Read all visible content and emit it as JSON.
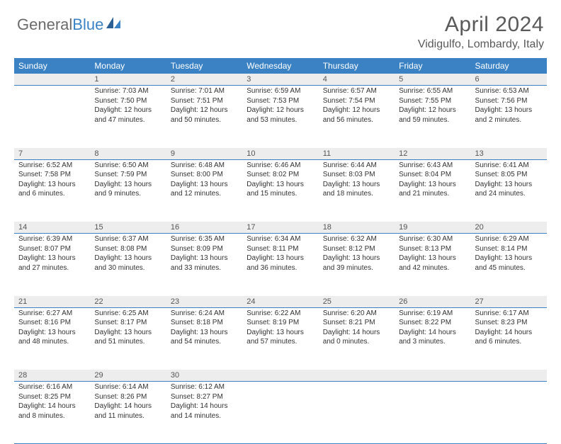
{
  "colors": {
    "header_bg": "#3b82c4",
    "header_text": "#ffffff",
    "daynum_bg": "#ededed",
    "row_border": "#3b82c4",
    "body_text": "#333333",
    "title_text": "#5a5a5a",
    "logo_gray": "#6b6b6b",
    "logo_blue": "#3b82c4",
    "background": "#ffffff"
  },
  "typography": {
    "font_family": "Arial, Helvetica, sans-serif",
    "month_title_size": 30,
    "location_size": 16,
    "weekday_size": 12,
    "daynum_size": 11,
    "body_size": 10
  },
  "logo": {
    "word1": "General",
    "word2": "Blue"
  },
  "title": "April 2024",
  "location": "Vidigulfo, Lombardy, Italy",
  "weekdays": [
    "Sunday",
    "Monday",
    "Tuesday",
    "Wednesday",
    "Thursday",
    "Friday",
    "Saturday"
  ],
  "layout": {
    "columns": 7,
    "rows": 5,
    "first_weekday_index": 1
  },
  "rows": [
    [
      null,
      {
        "n": "1",
        "sr": "Sunrise: 7:03 AM",
        "ss": "Sunset: 7:50 PM",
        "dl": "Daylight: 12 hours and 47 minutes."
      },
      {
        "n": "2",
        "sr": "Sunrise: 7:01 AM",
        "ss": "Sunset: 7:51 PM",
        "dl": "Daylight: 12 hours and 50 minutes."
      },
      {
        "n": "3",
        "sr": "Sunrise: 6:59 AM",
        "ss": "Sunset: 7:53 PM",
        "dl": "Daylight: 12 hours and 53 minutes."
      },
      {
        "n": "4",
        "sr": "Sunrise: 6:57 AM",
        "ss": "Sunset: 7:54 PM",
        "dl": "Daylight: 12 hours and 56 minutes."
      },
      {
        "n": "5",
        "sr": "Sunrise: 6:55 AM",
        "ss": "Sunset: 7:55 PM",
        "dl": "Daylight: 12 hours and 59 minutes."
      },
      {
        "n": "6",
        "sr": "Sunrise: 6:53 AM",
        "ss": "Sunset: 7:56 PM",
        "dl": "Daylight: 13 hours and 2 minutes."
      }
    ],
    [
      {
        "n": "7",
        "sr": "Sunrise: 6:52 AM",
        "ss": "Sunset: 7:58 PM",
        "dl": "Daylight: 13 hours and 6 minutes."
      },
      {
        "n": "8",
        "sr": "Sunrise: 6:50 AM",
        "ss": "Sunset: 7:59 PM",
        "dl": "Daylight: 13 hours and 9 minutes."
      },
      {
        "n": "9",
        "sr": "Sunrise: 6:48 AM",
        "ss": "Sunset: 8:00 PM",
        "dl": "Daylight: 13 hours and 12 minutes."
      },
      {
        "n": "10",
        "sr": "Sunrise: 6:46 AM",
        "ss": "Sunset: 8:02 PM",
        "dl": "Daylight: 13 hours and 15 minutes."
      },
      {
        "n": "11",
        "sr": "Sunrise: 6:44 AM",
        "ss": "Sunset: 8:03 PM",
        "dl": "Daylight: 13 hours and 18 minutes."
      },
      {
        "n": "12",
        "sr": "Sunrise: 6:43 AM",
        "ss": "Sunset: 8:04 PM",
        "dl": "Daylight: 13 hours and 21 minutes."
      },
      {
        "n": "13",
        "sr": "Sunrise: 6:41 AM",
        "ss": "Sunset: 8:05 PM",
        "dl": "Daylight: 13 hours and 24 minutes."
      }
    ],
    [
      {
        "n": "14",
        "sr": "Sunrise: 6:39 AM",
        "ss": "Sunset: 8:07 PM",
        "dl": "Daylight: 13 hours and 27 minutes."
      },
      {
        "n": "15",
        "sr": "Sunrise: 6:37 AM",
        "ss": "Sunset: 8:08 PM",
        "dl": "Daylight: 13 hours and 30 minutes."
      },
      {
        "n": "16",
        "sr": "Sunrise: 6:35 AM",
        "ss": "Sunset: 8:09 PM",
        "dl": "Daylight: 13 hours and 33 minutes."
      },
      {
        "n": "17",
        "sr": "Sunrise: 6:34 AM",
        "ss": "Sunset: 8:11 PM",
        "dl": "Daylight: 13 hours and 36 minutes."
      },
      {
        "n": "18",
        "sr": "Sunrise: 6:32 AM",
        "ss": "Sunset: 8:12 PM",
        "dl": "Daylight: 13 hours and 39 minutes."
      },
      {
        "n": "19",
        "sr": "Sunrise: 6:30 AM",
        "ss": "Sunset: 8:13 PM",
        "dl": "Daylight: 13 hours and 42 minutes."
      },
      {
        "n": "20",
        "sr": "Sunrise: 6:29 AM",
        "ss": "Sunset: 8:14 PM",
        "dl": "Daylight: 13 hours and 45 minutes."
      }
    ],
    [
      {
        "n": "21",
        "sr": "Sunrise: 6:27 AM",
        "ss": "Sunset: 8:16 PM",
        "dl": "Daylight: 13 hours and 48 minutes."
      },
      {
        "n": "22",
        "sr": "Sunrise: 6:25 AM",
        "ss": "Sunset: 8:17 PM",
        "dl": "Daylight: 13 hours and 51 minutes."
      },
      {
        "n": "23",
        "sr": "Sunrise: 6:24 AM",
        "ss": "Sunset: 8:18 PM",
        "dl": "Daylight: 13 hours and 54 minutes."
      },
      {
        "n": "24",
        "sr": "Sunrise: 6:22 AM",
        "ss": "Sunset: 8:19 PM",
        "dl": "Daylight: 13 hours and 57 minutes."
      },
      {
        "n": "25",
        "sr": "Sunrise: 6:20 AM",
        "ss": "Sunset: 8:21 PM",
        "dl": "Daylight: 14 hours and 0 minutes."
      },
      {
        "n": "26",
        "sr": "Sunrise: 6:19 AM",
        "ss": "Sunset: 8:22 PM",
        "dl": "Daylight: 14 hours and 3 minutes."
      },
      {
        "n": "27",
        "sr": "Sunrise: 6:17 AM",
        "ss": "Sunset: 8:23 PM",
        "dl": "Daylight: 14 hours and 6 minutes."
      }
    ],
    [
      {
        "n": "28",
        "sr": "Sunrise: 6:16 AM",
        "ss": "Sunset: 8:25 PM",
        "dl": "Daylight: 14 hours and 8 minutes."
      },
      {
        "n": "29",
        "sr": "Sunrise: 6:14 AM",
        "ss": "Sunset: 8:26 PM",
        "dl": "Daylight: 14 hours and 11 minutes."
      },
      {
        "n": "30",
        "sr": "Sunrise: 6:12 AM",
        "ss": "Sunset: 8:27 PM",
        "dl": "Daylight: 14 hours and 14 minutes."
      },
      null,
      null,
      null,
      null
    ]
  ]
}
